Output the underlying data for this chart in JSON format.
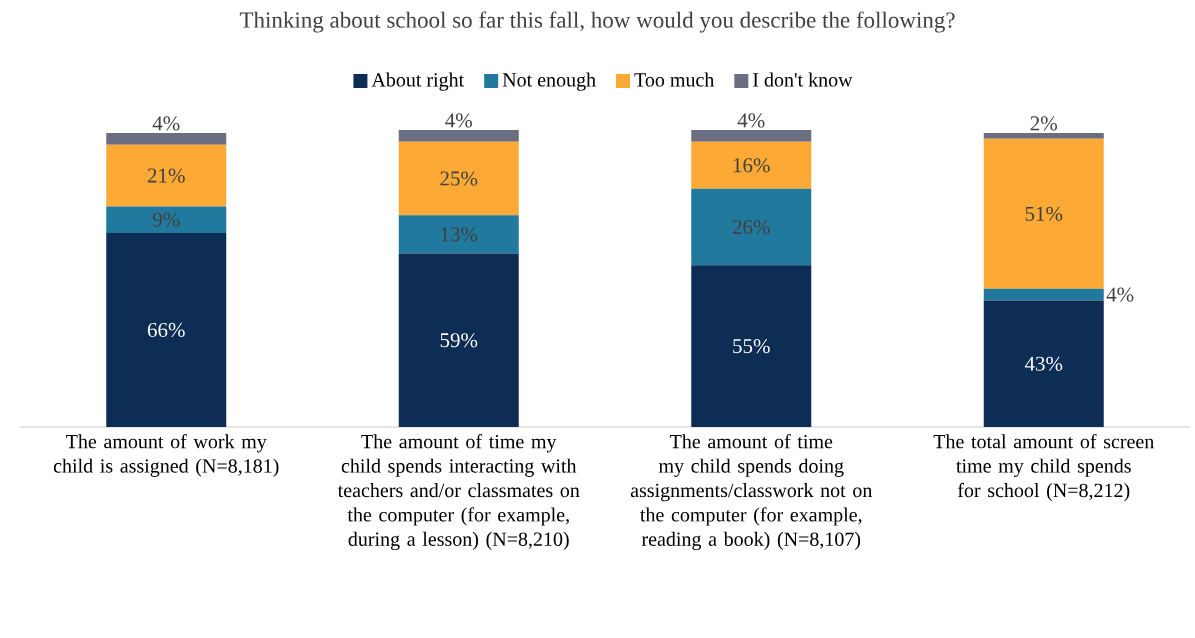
{
  "chart_data": {
    "type": "bar",
    "stacked": true,
    "title": "Thinking about school so far this fall, how would you describe the following?",
    "categories": [
      "The amount of work my child is assigned (N=8,181)",
      "The amount of time my child spends interacting with teachers and/or classmates on the computer (for example, during a lesson) (N=8,210)",
      "The amount of time my child spends doing assignments/classwork not on the computer (for example, reading a book) (N=8,107)",
      "The total amount of screen time my child spends for school (N=8,212)"
    ],
    "series": [
      {
        "name": "About right",
        "color": "#0e2d54",
        "values": [
          66,
          59,
          55,
          43
        ],
        "value_labels": [
          "66%",
          "59%",
          "55%",
          "43%"
        ]
      },
      {
        "name": "Not enough",
        "color": "#22799e",
        "values": [
          9,
          13,
          26,
          4
        ],
        "value_labels": [
          "9%",
          "13%",
          "26%",
          "4%"
        ]
      },
      {
        "name": "Too much",
        "color": "#fca935",
        "values": [
          21,
          25,
          16,
          51
        ],
        "value_labels": [
          "21%",
          "25%",
          "16%",
          "51%"
        ]
      },
      {
        "name": "I don't know",
        "color": "#6b6e80",
        "values": [
          4,
          4,
          4,
          2
        ],
        "value_labels": [
          "4%",
          "4%",
          "4%",
          "2%"
        ]
      }
    ],
    "legend": "top"
  }
}
